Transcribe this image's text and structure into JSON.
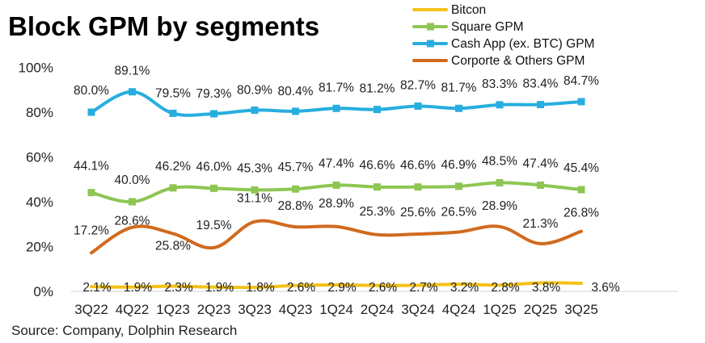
{
  "title": "Block GPM by segments",
  "source": "Source: Company, Dolphin Research",
  "chart_data": {
    "type": "line",
    "title": "Block GPM by segments",
    "xlabel": "",
    "ylabel": "",
    "ylim": [
      0,
      100
    ],
    "yticks": [
      "0%",
      "20%",
      "40%",
      "60%",
      "80%",
      "100%"
    ],
    "categories": [
      "3Q22",
      "4Q22",
      "1Q23",
      "2Q23",
      "3Q23",
      "4Q23",
      "1Q24",
      "2Q24",
      "3Q24",
      "4Q24",
      "1Q25",
      "2Q25",
      "3Q25"
    ],
    "legend_position": "top-right",
    "series": [
      {
        "name": "Bitcon",
        "color": "#F3C21A",
        "marker": "none",
        "values": [
          2.1,
          1.9,
          2.3,
          1.9,
          1.8,
          2.6,
          2.9,
          2.6,
          2.7,
          3.2,
          2.8,
          3.8,
          3.6
        ],
        "labels": [
          "2.1%",
          "1.9%",
          "2.3%",
          "1.9%",
          "1.8%",
          "2.6%",
          "2.9%",
          "2.6%",
          "2.7%",
          "3.2%",
          "2.8%",
          "3.8%",
          "3.6%"
        ]
      },
      {
        "name": "Square GPM",
        "color": "#8DC652",
        "marker": "square",
        "values": [
          44.1,
          40.0,
          46.2,
          46.0,
          45.3,
          45.7,
          47.4,
          46.6,
          46.6,
          46.9,
          48.5,
          47.4,
          45.4
        ],
        "labels": [
          "44.1%",
          "40.0%",
          "46.2%",
          "46.0%",
          "45.3%",
          "45.7%",
          "47.4%",
          "46.6%",
          "46.6%",
          "46.9%",
          "48.5%",
          "47.4%",
          "45.4%"
        ]
      },
      {
        "name": "Cash App (ex. BTC) GPM",
        "color": "#27AEDE",
        "marker": "square",
        "values": [
          80.0,
          89.1,
          79.5,
          79.3,
          80.9,
          80.4,
          81.7,
          81.2,
          82.7,
          81.7,
          83.3,
          83.4,
          84.7
        ],
        "labels": [
          "80.0%",
          "89.1%",
          "79.5%",
          "79.3%",
          "80.9%",
          "80.4%",
          "81.7%",
          "81.2%",
          "82.7%",
          "81.7%",
          "83.3%",
          "83.4%",
          "84.7%"
        ]
      },
      {
        "name": "Corporte & Others GPM",
        "color": "#D16A1E",
        "marker": "none",
        "values": [
          17.2,
          28.6,
          25.8,
          19.5,
          31.1,
          28.8,
          28.9,
          25.3,
          25.6,
          26.5,
          28.9,
          21.3,
          26.8
        ],
        "labels": [
          "17.2%",
          "28.6%",
          "25.8%",
          "19.5%",
          "31.1%",
          "28.8%",
          "28.9%",
          "25.3%",
          "25.6%",
          "26.5%",
          "28.9%",
          "21.3%",
          "26.8%"
        ]
      }
    ]
  }
}
